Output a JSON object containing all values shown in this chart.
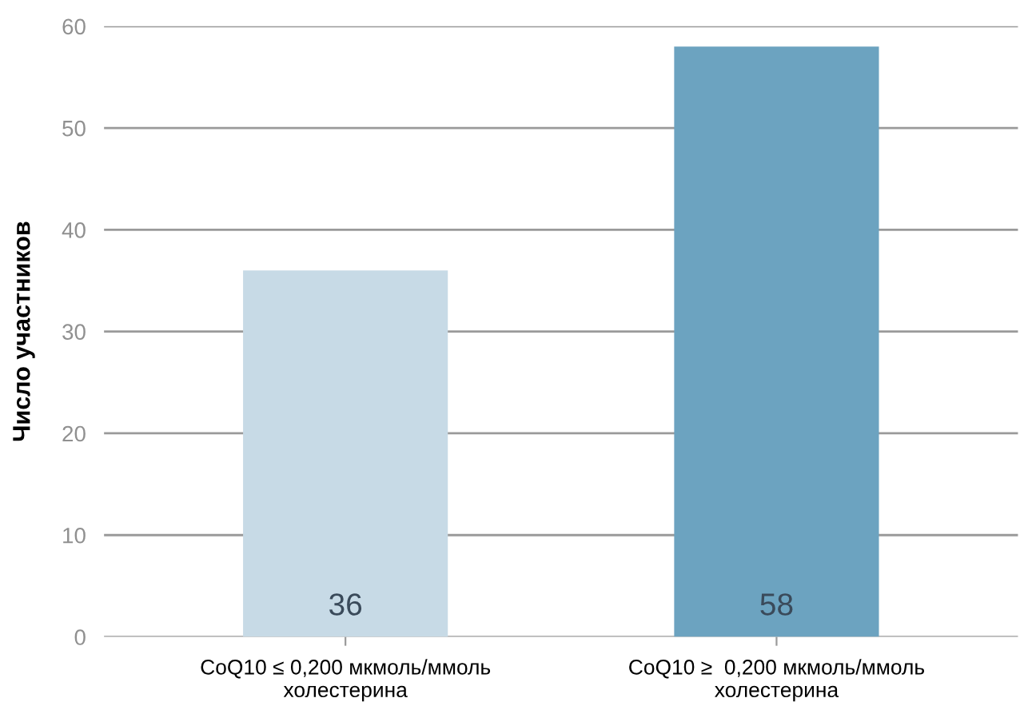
{
  "chart_data": {
    "type": "bar",
    "ylabel": "Число участников",
    "categories": [
      "CoQ10 ≤ 0,200 мкмоль/ммоль\nхолестерина",
      "CoQ10 ≥  0,200 мкмоль/ммоль\nхолестерина"
    ],
    "values": [
      36,
      58
    ],
    "colors": [
      "#c7dae6",
      "#6ca3c0"
    ],
    "ylim": [
      0,
      60
    ],
    "yticks": [
      0,
      10,
      20,
      30,
      40,
      50,
      60
    ],
    "grid": "y",
    "data_labels": true
  }
}
